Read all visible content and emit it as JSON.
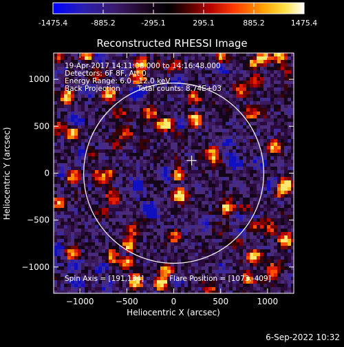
{
  "colorbar": {
    "ticks": [
      "-1475.4",
      "-885.2",
      "-295.1",
      "295.1",
      "885.2",
      "1475.4"
    ],
    "tick_values": [
      -1475.4,
      -885.2,
      -295.1,
      295.1,
      885.2,
      1475.4
    ],
    "range": [
      -1475.4,
      1475.4
    ],
    "colormap": "rhessi-hot-with-blue",
    "low_color": "#0000ff",
    "mid_color": "#000000",
    "high_color": "#ffffff"
  },
  "chart_data": {
    "type": "heatmap",
    "title": "Reconstructed RHESSI Image",
    "xlabel": "Heliocentric X (arcsec)",
    "ylabel": "Heliocentric Y (arcsec)",
    "xlim": [
      -1280,
      1280
    ],
    "ylim": [
      -1280,
      1280
    ],
    "xticks": [
      -1000,
      -500,
      0,
      500,
      1000
    ],
    "yticks": [
      -1000,
      -500,
      0,
      500,
      1000
    ],
    "xtick_labels": [
      "−1000",
      "−500",
      "0",
      "500",
      "1000"
    ],
    "ytick_labels": [
      "−1000",
      "−500",
      "0",
      "500",
      "1000"
    ],
    "solar_limb_radius_arcsec": 960,
    "marker_position": [
      191,
      134
    ],
    "annotations": {
      "line1": "19-Apr-2017 14:11:08.000 to 14:16:48.000",
      "line2": "Detectors: 6F 8F, Att 0",
      "line3": "Energy Range: 6.0 - 12.0 keV",
      "line4a": "Back Projection",
      "line4b": "Total counts: 8.74E+03",
      "spin": "Spin Axis = [191,134]",
      "flare": "Flare Position = [1073,-409]"
    }
  },
  "footer": {
    "date": "6-Sep-2022 10:32"
  }
}
